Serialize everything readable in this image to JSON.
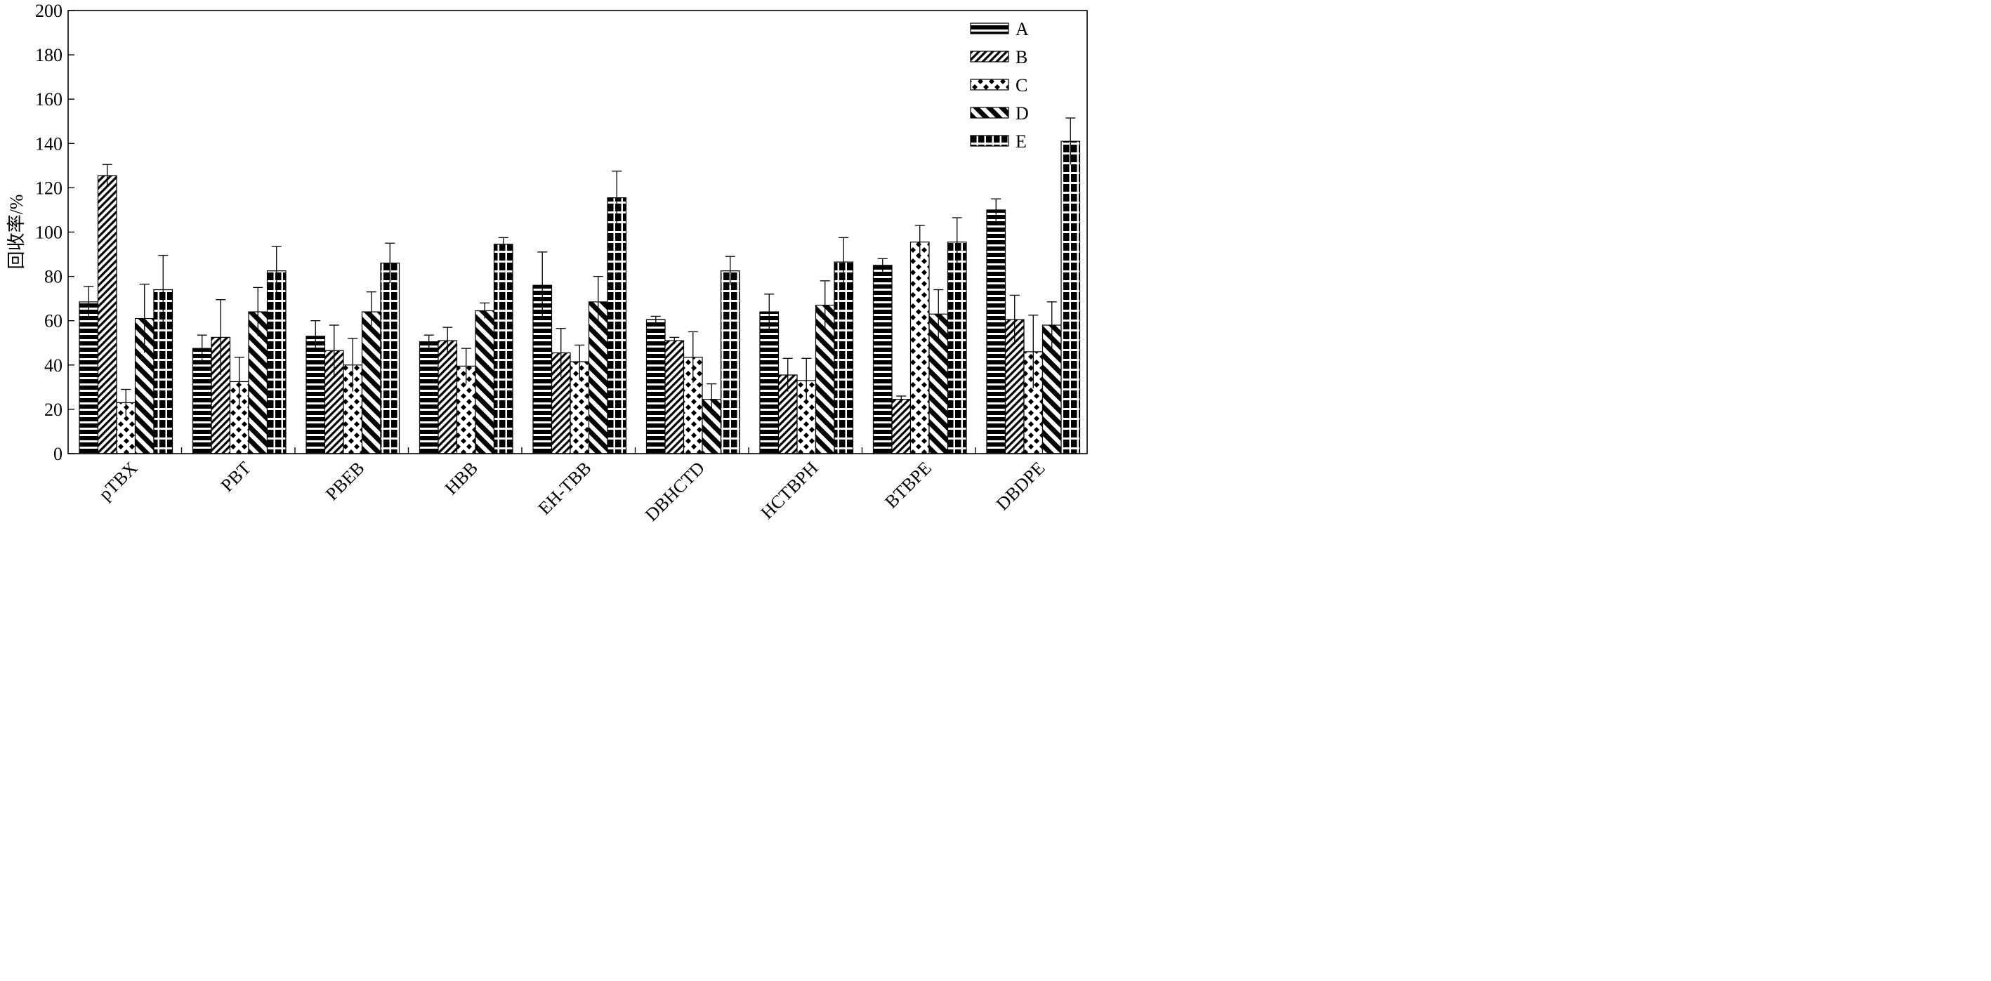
{
  "chart_data": {
    "type": "bar",
    "title": "",
    "xlabel": "",
    "ylabel": "回收率/%",
    "ylim": [
      0,
      200
    ],
    "yticks": [
      0,
      20,
      40,
      60,
      80,
      100,
      120,
      140,
      160,
      180,
      200
    ],
    "grid": false,
    "legend_position": "top-right",
    "categories": [
      "pTBX",
      "PBT",
      "PBEB",
      "HBB",
      "EH-TBB",
      "DBHCTD",
      "HCTBPH",
      "BTBPE",
      "DBDPE"
    ],
    "series": [
      {
        "name": "A",
        "pattern": "horizontal-stripes",
        "values": [
          68.5,
          47.5,
          53,
          50.5,
          76,
          60.5,
          64,
          85,
          110
        ],
        "errors": [
          7,
          6,
          7,
          3,
          15,
          1.5,
          8,
          3,
          5
        ]
      },
      {
        "name": "B",
        "pattern": "diagonal-hatch",
        "values": [
          125.5,
          52.5,
          46.5,
          51,
          45.5,
          51,
          35.5,
          24.5,
          60.5
        ],
        "errors": [
          5,
          17,
          11.5,
          6,
          11,
          1.5,
          7.5,
          1.5,
          11
        ]
      },
      {
        "name": "C",
        "pattern": "diamond-checker",
        "values": [
          23,
          32.5,
          40,
          39.5,
          41.5,
          43.5,
          33,
          95.5,
          46
        ],
        "errors": [
          6,
          11,
          12,
          8,
          7.5,
          11.5,
          10,
          7.5,
          16.5
        ]
      },
      {
        "name": "D",
        "pattern": "reverse-diagonal-hatch",
        "values": [
          61,
          64,
          64,
          64.5,
          68.5,
          24.5,
          67,
          63,
          58
        ],
        "errors": [
          15.5,
          11,
          9,
          3.5,
          11.5,
          7,
          11,
          11,
          10.5
        ]
      },
      {
        "name": "E",
        "pattern": "cross-grid",
        "values": [
          74,
          82.5,
          86,
          94.5,
          115.5,
          82.5,
          86.5,
          95.5,
          141
        ],
        "errors": [
          15.5,
          11,
          9,
          3,
          12,
          6.5,
          11,
          11,
          10.5
        ]
      }
    ]
  }
}
